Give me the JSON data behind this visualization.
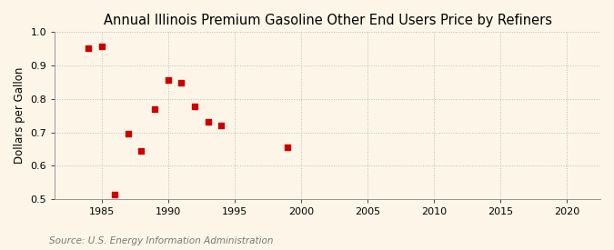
{
  "title": "Annual Illinois Premium Gasoline Other End Users Price by Refiners",
  "ylabel": "Dollars per Gallon",
  "source": "Source: U.S. Energy Information Administration",
  "xlim": [
    1981.5,
    2022.5
  ],
  "ylim": [
    0.5,
    1.0
  ],
  "xticks": [
    1985,
    1990,
    1995,
    2000,
    2005,
    2010,
    2015,
    2020
  ],
  "yticks": [
    0.5,
    0.6,
    0.7,
    0.8,
    0.9,
    1.0
  ],
  "x": [
    1984,
    1985,
    1986,
    1987,
    1988,
    1989,
    1990,
    1991,
    1992,
    1993,
    1994,
    1999
  ],
  "y": [
    0.951,
    0.957,
    0.513,
    0.697,
    0.643,
    0.769,
    0.857,
    0.849,
    0.778,
    0.73,
    0.72,
    0.655
  ],
  "marker_color": "#cc0000",
  "marker": "s",
  "marker_size": 16,
  "bg_color": "#fdf6e8",
  "grid_color": "#bbbbbb",
  "title_fontsize": 10.5,
  "label_fontsize": 8.5,
  "tick_fontsize": 8,
  "source_fontsize": 7.5
}
